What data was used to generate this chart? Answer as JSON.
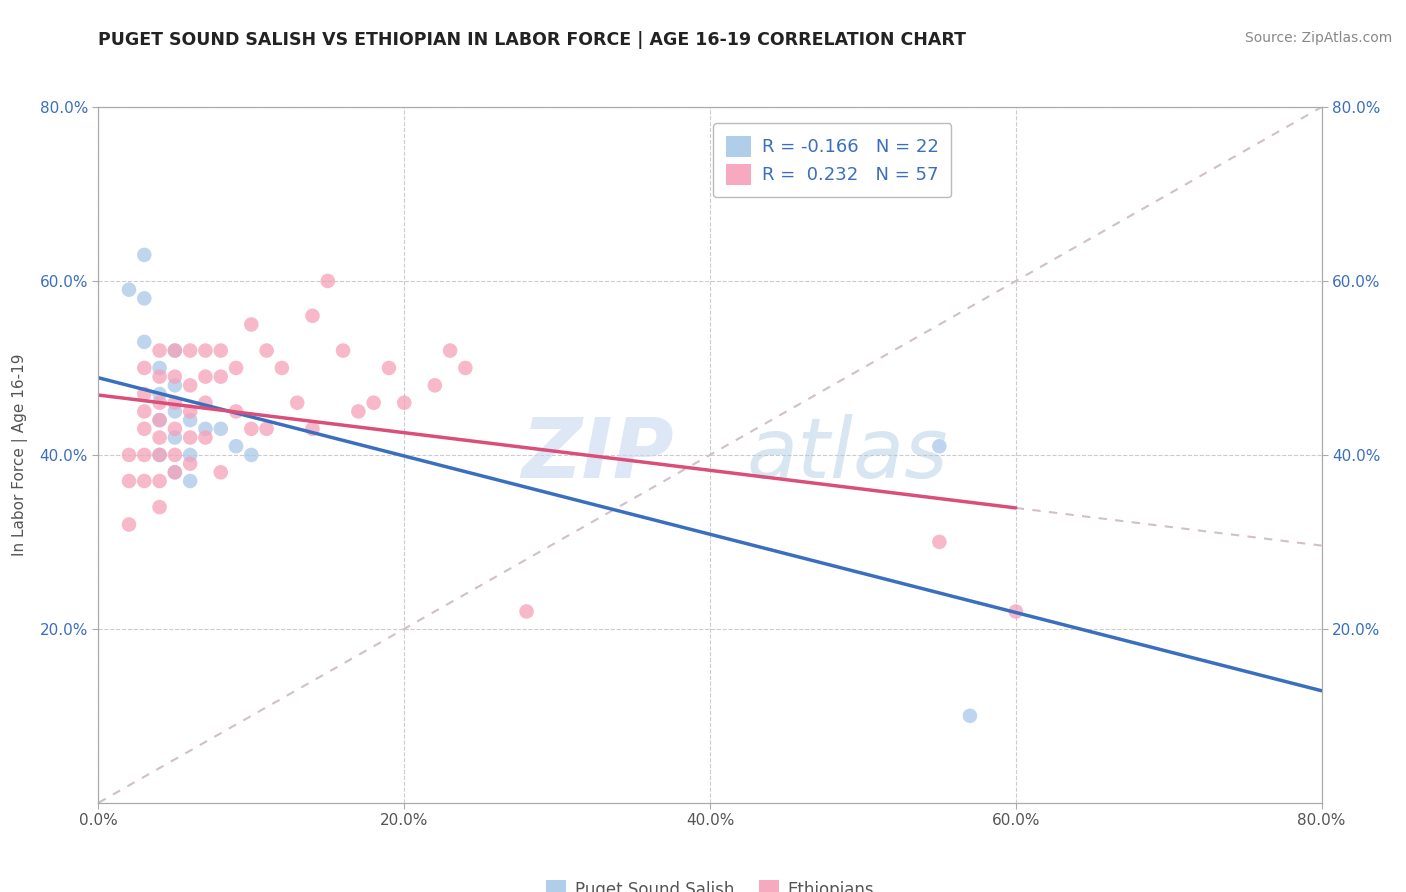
{
  "title": "PUGET SOUND SALISH VS ETHIOPIAN IN LABOR FORCE | AGE 16-19 CORRELATION CHART",
  "source": "Source: ZipAtlas.com",
  "ylabel": "In Labor Force | Age 16-19",
  "xlim": [
    0.0,
    0.8
  ],
  "ylim": [
    0.0,
    0.8
  ],
  "xticks": [
    0.0,
    0.2,
    0.4,
    0.6,
    0.8
  ],
  "yticks": [
    0.2,
    0.4,
    0.6,
    0.8
  ],
  "xticklabels": [
    "0.0%",
    "20.0%",
    "40.0%",
    "60.0%",
    "80.0%"
  ],
  "yticklabels": [
    "20.0%",
    "40.0%",
    "60.0%",
    "80.0%"
  ],
  "background": "#ffffff",
  "grid_color": "#cccccc",
  "watermark_zip": "ZIP",
  "watermark_atlas": "atlas",
  "legend_R_blue": "-0.166",
  "legend_N_blue": "22",
  "legend_R_pink": "0.232",
  "legend_N_pink": "57",
  "blue_color": "#a8c8e8",
  "pink_color": "#f5a0b8",
  "blue_line_color": "#3a6fbf",
  "pink_line_color": "#d94f7a",
  "diag_line_color": "#d0c0c8",
  "blue_scatter_x": [
    0.02,
    0.03,
    0.03,
    0.03,
    0.04,
    0.04,
    0.04,
    0.04,
    0.05,
    0.05,
    0.05,
    0.05,
    0.05,
    0.06,
    0.06,
    0.06,
    0.07,
    0.08,
    0.09,
    0.1,
    0.55,
    0.57
  ],
  "blue_scatter_y": [
    0.59,
    0.63,
    0.58,
    0.53,
    0.5,
    0.47,
    0.44,
    0.4,
    0.52,
    0.48,
    0.45,
    0.42,
    0.38,
    0.44,
    0.4,
    0.37,
    0.43,
    0.43,
    0.41,
    0.4,
    0.41,
    0.1
  ],
  "pink_scatter_x": [
    0.02,
    0.02,
    0.02,
    0.03,
    0.03,
    0.03,
    0.03,
    0.03,
    0.03,
    0.04,
    0.04,
    0.04,
    0.04,
    0.04,
    0.04,
    0.04,
    0.04,
    0.05,
    0.05,
    0.05,
    0.05,
    0.05,
    0.05,
    0.06,
    0.06,
    0.06,
    0.06,
    0.06,
    0.07,
    0.07,
    0.07,
    0.07,
    0.08,
    0.08,
    0.08,
    0.09,
    0.09,
    0.1,
    0.1,
    0.11,
    0.11,
    0.12,
    0.13,
    0.14,
    0.14,
    0.15,
    0.16,
    0.17,
    0.18,
    0.19,
    0.2,
    0.22,
    0.23,
    0.24,
    0.28,
    0.55,
    0.6
  ],
  "pink_scatter_y": [
    0.4,
    0.37,
    0.32,
    0.5,
    0.47,
    0.45,
    0.43,
    0.4,
    0.37,
    0.52,
    0.49,
    0.46,
    0.44,
    0.42,
    0.4,
    0.37,
    0.34,
    0.52,
    0.49,
    0.46,
    0.43,
    0.4,
    0.38,
    0.52,
    0.48,
    0.45,
    0.42,
    0.39,
    0.52,
    0.49,
    0.46,
    0.42,
    0.52,
    0.49,
    0.38,
    0.5,
    0.45,
    0.55,
    0.43,
    0.52,
    0.43,
    0.5,
    0.46,
    0.56,
    0.43,
    0.6,
    0.52,
    0.45,
    0.46,
    0.5,
    0.46,
    0.48,
    0.52,
    0.5,
    0.22,
    0.3,
    0.22
  ]
}
